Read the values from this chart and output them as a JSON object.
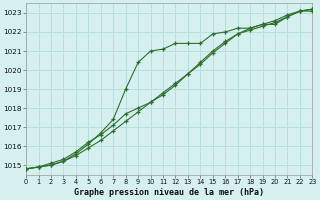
{
  "title": "Graphe pression niveau de la mer (hPa)",
  "bg_color": "#d6f0f0",
  "grid_color": "#b8dede",
  "line_color": "#2d6e2d",
  "marker": "+",
  "xlim": [
    0,
    23
  ],
  "ylim": [
    1014.5,
    1023.5
  ],
  "xticks": [
    0,
    1,
    2,
    3,
    4,
    5,
    6,
    7,
    8,
    9,
    10,
    11,
    12,
    13,
    14,
    15,
    16,
    17,
    18,
    19,
    20,
    21,
    22,
    23
  ],
  "yticks": [
    1015,
    1016,
    1017,
    1018,
    1019,
    1020,
    1021,
    1022,
    1023
  ],
  "line1_x": [
    0,
    1,
    2,
    3,
    4,
    5,
    6,
    7,
    8,
    9,
    10,
    11,
    12,
    13,
    14,
    15,
    16,
    17,
    18,
    19,
    20,
    21,
    22,
    23
  ],
  "line1_y": [
    1014.8,
    1014.9,
    1015.0,
    1015.2,
    1015.6,
    1016.1,
    1016.7,
    1017.4,
    1019.0,
    1020.4,
    1021.0,
    1021.1,
    1021.4,
    1021.4,
    1021.4,
    1021.9,
    1022.0,
    1022.2,
    1022.2,
    1022.4,
    1022.4,
    1022.8,
    1023.1,
    1023.1
  ],
  "line2_x": [
    0,
    1,
    2,
    3,
    4,
    5,
    6,
    7,
    8,
    9,
    10,
    11,
    12,
    13,
    14,
    15,
    16,
    17,
    18,
    19,
    20,
    21,
    22,
    23
  ],
  "line2_y": [
    1014.8,
    1014.9,
    1015.1,
    1015.3,
    1015.7,
    1016.2,
    1016.6,
    1017.1,
    1017.7,
    1018.0,
    1018.3,
    1018.7,
    1019.2,
    1019.8,
    1020.3,
    1020.9,
    1021.4,
    1021.9,
    1022.1,
    1022.3,
    1022.5,
    1022.8,
    1023.1,
    1023.2
  ],
  "line3_x": [
    0,
    1,
    2,
    3,
    4,
    5,
    6,
    7,
    8,
    9,
    10,
    11,
    12,
    13,
    14,
    15,
    16,
    17,
    18,
    19,
    20,
    21,
    22,
    23
  ],
  "line3_y": [
    1014.8,
    1014.9,
    1015.0,
    1015.2,
    1015.5,
    1015.9,
    1016.3,
    1016.8,
    1017.3,
    1017.8,
    1018.3,
    1018.8,
    1019.3,
    1019.8,
    1020.4,
    1021.0,
    1021.5,
    1021.9,
    1022.2,
    1022.4,
    1022.6,
    1022.9,
    1023.1,
    1023.2
  ]
}
